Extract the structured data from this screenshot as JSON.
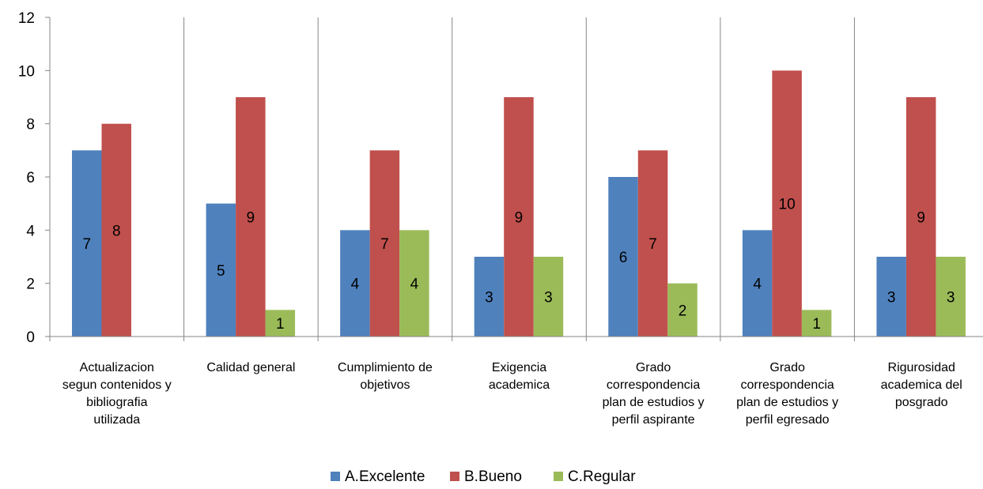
{
  "chart_data": {
    "type": "bar",
    "categories": [
      [
        "Actualizacion",
        "segun contenidos y",
        "bibliografia",
        "utilizada"
      ],
      [
        "Calidad general"
      ],
      [
        "Cumplimiento de",
        "objetivos"
      ],
      [
        "Exigencia",
        "academica"
      ],
      [
        "Grado",
        "correspondencia",
        "plan de estudios y",
        "perfil aspirante"
      ],
      [
        "Grado",
        "correspondencia",
        "plan de estudios y",
        "perfil egresado"
      ],
      [
        "Rigurosidad",
        "academica del",
        "posgrado"
      ]
    ],
    "series": [
      {
        "name": "A.Excelente",
        "color": "#4f81bd",
        "values": [
          7,
          5,
          4,
          3,
          6,
          4,
          3
        ]
      },
      {
        "name": "B.Bueno",
        "color": "#c0504d",
        "values": [
          8,
          9,
          7,
          9,
          7,
          10,
          9
        ]
      },
      {
        "name": "C.Regular",
        "color": "#9bbb59",
        "values": [
          null,
          1,
          4,
          3,
          2,
          1,
          3
        ]
      }
    ],
    "ylim": [
      0,
      12
    ],
    "yticks": [
      0,
      2,
      4,
      6,
      8,
      10,
      12
    ],
    "title": "",
    "xlabel": "",
    "ylabel": "",
    "grid": "vertical category dividers and horizontal tick marks",
    "legend_position": "bottom",
    "data_labels": "centered in bars"
  }
}
